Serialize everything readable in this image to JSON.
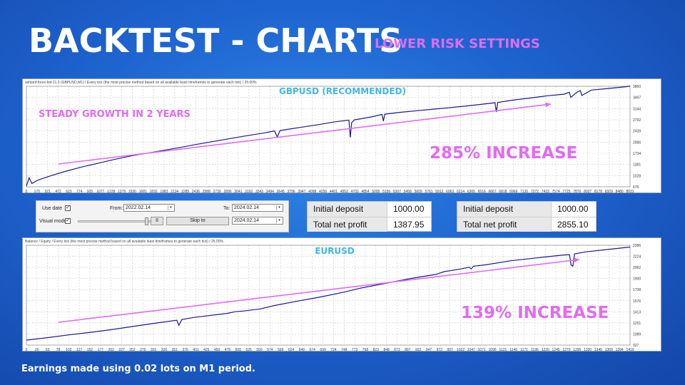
{
  "title": "BACKTEST - CHARTS",
  "subtitle": "LOWER RISK SETTINGS",
  "footer": "Earnings made using 0.02 lots on M1 period.",
  "colors": {
    "pink": "#e06cf0",
    "line": "#1a1a8e",
    "grid": "#c9c9c9",
    "white": "#ffffff"
  },
  "chart_data": [
    {
      "type": "line",
      "header": "ashlanf-forex-bot-11.3 (GBPUSD,M1) / Every tick (the most precise method based on all available least timeframes to generate each tick) / 25.00%",
      "title": "GBPUSD (RECOMMENDED)",
      "annotation_left": "STEADY GROWTH IN 2 YEARS",
      "annotation_right": "285% INCREASE",
      "y_ticks": [
        "3850",
        "3497",
        "3144",
        "2792",
        "2439",
        "2086",
        "1734",
        "1381",
        "1028",
        "676"
      ],
      "ylim": [
        676,
        3850
      ],
      "x_ticks": [
        "0",
        "170",
        "321",
        "472",
        "623",
        "774",
        "925",
        "1077",
        "1228",
        "1379",
        "1530",
        "1681",
        "1832",
        "1983",
        "2134",
        "2285",
        "2436",
        "2588",
        "2739",
        "2890",
        "3041",
        "3192",
        "3343",
        "3494",
        "3645",
        "3796",
        "3947",
        "4098",
        "4250",
        "4401",
        "4552",
        "4703",
        "4854",
        "5005",
        "5156",
        "5307",
        "5458",
        "5609",
        "5761",
        "5912",
        "6063",
        "6214",
        "6365",
        "6516",
        "6667",
        "6818",
        "6969",
        "7120",
        "7272",
        "7423",
        "7574",
        "7725",
        "7876",
        "8027",
        "8178",
        "8329",
        "8480",
        "8631"
      ],
      "xlim": [
        0,
        8760
      ],
      "x": [
        0,
        40,
        80,
        160,
        320,
        560,
        800,
        1040,
        1280,
        1520,
        1760,
        2000,
        2240,
        2480,
        2720,
        2960,
        3200,
        3440,
        3600,
        3640,
        3680,
        3760,
        4000,
        4240,
        4480,
        4680,
        4700,
        4720,
        4760,
        5000,
        5160,
        5180,
        5200,
        5440,
        5680,
        5920,
        6160,
        6400,
        6640,
        6800,
        6820,
        6840,
        7080,
        7320,
        7560,
        7800,
        7880,
        7900,
        8000,
        8040,
        8060,
        8200,
        8440,
        8680,
        8760
      ],
      "values": [
        700,
        960,
        780,
        880,
        1000,
        1160,
        1300,
        1420,
        1540,
        1650,
        1740,
        1830,
        1920,
        2020,
        2110,
        2200,
        2290,
        2370,
        2440,
        2250,
        2450,
        2480,
        2560,
        2640,
        2730,
        2780,
        2230,
        2700,
        2790,
        2880,
        2960,
        2750,
        2970,
        3030,
        3080,
        3130,
        3180,
        3230,
        3290,
        3330,
        3040,
        3340,
        3420,
        3480,
        3550,
        3600,
        3660,
        3500,
        3680,
        3710,
        3560,
        3730,
        3780,
        3830,
        3860
      ]
    },
    {
      "type": "line",
      "header": "Balance / Equity / Every tick (the most precise method based on all available least timeframes to generate each tick) / 25.00%",
      "title": "EURUSD",
      "annotation_right": "139% INCREASE",
      "y_ticks": [
        "2386",
        "2224",
        "2062",
        "1900",
        "1738",
        "1576",
        "1413",
        "1251",
        "1089",
        "927"
      ],
      "ylim": [
        927,
        2386
      ],
      "x_ticks": [
        "0",
        "26",
        "53",
        "78",
        "102",
        "127",
        "152",
        "177",
        "202",
        "227",
        "252",
        "276",
        "301",
        "326",
        "351",
        "376",
        "401",
        "425",
        "450",
        "475",
        "500",
        "525",
        "550",
        "574",
        "599",
        "624",
        "649",
        "674",
        "699",
        "724",
        "748",
        "773",
        "798",
        "823",
        "848",
        "873",
        "897",
        "922",
        "947",
        "972",
        "997",
        "1022",
        "1047",
        "1071",
        "1096",
        "1121",
        "1146",
        "1171",
        "1196",
        "1220",
        "1245",
        "1270",
        "1295",
        "1320",
        "1345",
        "1369",
        "1394",
        "1419"
      ],
      "xlim": [
        0,
        1445
      ],
      "x": [
        0,
        50,
        100,
        150,
        200,
        300,
        360,
        365,
        372,
        400,
        480,
        500,
        520,
        560,
        590,
        640,
        700,
        760,
        800,
        860,
        920,
        980,
        1000,
        1040,
        1060,
        1065,
        1070,
        1100,
        1160,
        1220,
        1280,
        1300,
        1304,
        1308,
        1312,
        1340,
        1400,
        1445
      ],
      "values": [
        1000,
        1035,
        1075,
        1110,
        1150,
        1240,
        1290,
        1215,
        1300,
        1330,
        1390,
        1415,
        1425,
        1455,
        1500,
        1560,
        1625,
        1700,
        1760,
        1830,
        1900,
        1960,
        2000,
        2040,
        2065,
        2040,
        2080,
        2100,
        2160,
        2200,
        2240,
        2250,
        2095,
        2080,
        2260,
        2290,
        2330,
        2360
      ]
    }
  ],
  "settings": {
    "use_date_label": "Use date",
    "use_date_checked": "✓",
    "visual_mode_label": "Visual mode",
    "visual_mode_checked": "✓",
    "from_label": "From:",
    "from_date": "2022.02.14",
    "to_label": "To:",
    "to_date": "2024.02.14",
    "pause_label": "II",
    "skip_label": "Skip to",
    "skip_date": "2024.02.14"
  },
  "stats_left": {
    "initial_deposit_label": "Initial deposit",
    "initial_deposit_value": "1000.00",
    "total_net_profit_label": "Total net profit",
    "total_net_profit_value": "1387.95"
  },
  "stats_right": {
    "initial_deposit_label": "Initial deposit",
    "initial_deposit_value": "1000.00",
    "total_net_profit_label": "Total net profit",
    "total_net_profit_value": "2855.10"
  }
}
